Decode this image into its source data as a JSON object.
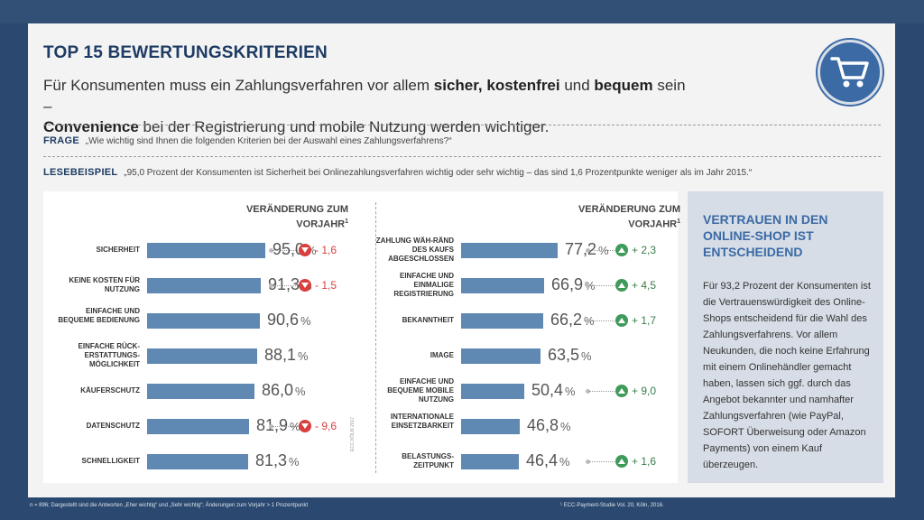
{
  "title": "TOP 15 BEWERTUNGSKRITERIEN",
  "subtitle": {
    "p1": "Für Konsumenten muss ein Zahlungsverfahren vor allem ",
    "b1": "sicher, kostenfrei",
    "p2": " und ",
    "b2": "bequem",
    "p3": " sein –",
    "b3": "Convenience",
    "p4": " bei der Registrierung und mobile Nutzung werden wichtiger."
  },
  "frage": {
    "label": "FRAGE",
    "text": "„Wie wichtig sind Ihnen die folgenden Kriterien bei der Auswahl eines Zahlungsverfahrens?“"
  },
  "lesebeispiel": {
    "label": "LESEBEISPIEL",
    "text": "„95,0 Prozent der Konsumenten ist Sicherheit bei Onlinezahlungsverfahren wichtig oder sehr wichtig – das sind 1,6 Prozentpunkte weniger als im Jahr 2015.“"
  },
  "side": {
    "title": "VERTRAUEN IN DEN ONLINE-SHOP IST ENTSCHEIDEND",
    "text": "Für 93,2 Prozent der Konsumenten ist die Vertrauenswürdigkeit des Online-Shops entscheidend für die Wahl des Zahlungsverfahrens. Vor allem Neukunden, die noch keine Erfahrung mit einem Onlinehändler gemacht haben, lassen sich ggf. durch das Angebot bekannter und namhafter Zahlungsverfahren (wie PayPal, SOFORT Überweisung oder Amazon Payments) von einem Kauf überzeugen."
  },
  "footer": {
    "left": "n = 896; Dargestellt sind die Antworten „Eher wichtig“ und „Sehr wichtig“; Änderungen zum Vorjahr > 1 Prozentpunkt",
    "right": "¹ ECC-Payment-Studie Vol. 20, Köln, 2016.",
    "vertical": "ECC KÖLN 2017"
  },
  "colors": {
    "bar": "#5f88b3",
    "down": "#d83f3d",
    "up": "#3f9b5a",
    "accent": "#3b6aa5",
    "title": "#1d3b63"
  },
  "icons": {
    "logo": "shopping-cart-icon",
    "down": "triangle-down-icon",
    "up": "triangle-up-icon"
  },
  "chart_data": {
    "type": "bar",
    "title": "TOP 15 BEWERTUNGSKRITERIEN",
    "unit": "%",
    "xlim": [
      0,
      100
    ],
    "change_header": "VERÄNDERUNG ZUM VORJAHR",
    "change_header_sup": "1",
    "left_column": [
      {
        "label": "SICHERHEIT",
        "value": 95.0,
        "value_text": "95,0",
        "change": -1.6,
        "change_text": "- 1,6"
      },
      {
        "label": "KEINE KOSTEN FÜR NUTZUNG",
        "value": 91.3,
        "value_text": "91,3",
        "change": -1.5,
        "change_text": "- 1,5"
      },
      {
        "label": "EINFACHE UND BEQUEME BEDIENUNG",
        "value": 90.6,
        "value_text": "90,6",
        "change": null,
        "change_text": null
      },
      {
        "label": "EINFACHE RÜCK-ERSTATTUNGS-MÖGLICHKEIT",
        "value": 88.1,
        "value_text": "88,1",
        "change": null,
        "change_text": null
      },
      {
        "label": "KÄUFERSCHUTZ",
        "value": 86.0,
        "value_text": "86,0",
        "change": null,
        "change_text": null
      },
      {
        "label": "DATENSCHUTZ",
        "value": 81.9,
        "value_text": "81,9",
        "change": -9.6,
        "change_text": "- 9,6"
      },
      {
        "label": "SCHNELLIGKEIT",
        "value": 81.3,
        "value_text": "81,3",
        "change": null,
        "change_text": null
      }
    ],
    "right_column": [
      {
        "label": "ZAHLUNG WÄH-RÄND DES KAUFS ABGESCHLOSSEN",
        "value": 77.2,
        "value_text": "77,2",
        "change": 2.3,
        "change_text": "+ 2,3"
      },
      {
        "label": "EINFACHE UND EINMALIGE REGISTRIERUNG",
        "value": 66.9,
        "value_text": "66,9",
        "change": 4.5,
        "change_text": "+ 4,5"
      },
      {
        "label": "BEKANNTHEIT",
        "value": 66.2,
        "value_text": "66,2",
        "change": 1.7,
        "change_text": "+ 1,7"
      },
      {
        "label": "IMAGE",
        "value": 63.5,
        "value_text": "63,5",
        "change": null,
        "change_text": null
      },
      {
        "label": "EINFACHE UND BEQUEME MOBILE NUTZUNG",
        "value": 50.4,
        "value_text": "50,4",
        "change": 9.0,
        "change_text": "+ 9,0"
      },
      {
        "label": "INTERNATIONALE EINSETZBARKEIT",
        "value": 46.8,
        "value_text": "46,8",
        "change": null,
        "change_text": null
      },
      {
        "label": "BELASTUNGS-ZEITPUNKT",
        "value": 46.4,
        "value_text": "46,4",
        "change": 1.6,
        "change_text": "+ 1,6"
      }
    ]
  }
}
